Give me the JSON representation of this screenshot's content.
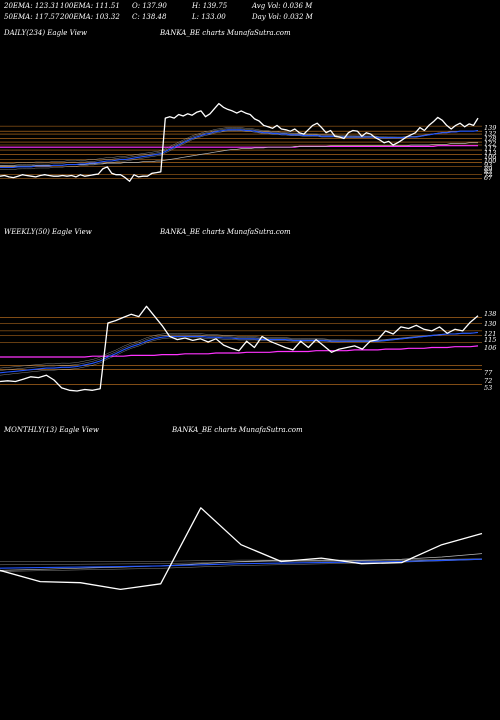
{
  "header": {
    "row1": [
      {
        "label": "20EMA: 123.31"
      },
      {
        "label": "100EMA: 111.51"
      },
      {
        "label": "O: 137.90"
      },
      {
        "label": "H: 139.75"
      },
      {
        "label": "Avg Vol: 0.036  M"
      }
    ],
    "row2": [
      {
        "label": "50EMA: 117.57"
      },
      {
        "label": "200EMA: 103.32"
      },
      {
        "label": "C: 138.48"
      },
      {
        "label": "L: 133.00"
      },
      {
        "label": "Day Vol: 0.032  M"
      }
    ]
  },
  "colors": {
    "background": "#000000",
    "price": "#ffffff",
    "ema_fast": "#2255ff",
    "ema_magenta": "#ff33ff",
    "level_lines": "#cc7a22",
    "ema_gray": "#bbbbbb"
  },
  "panels": [
    {
      "title": "DAILY(234) Eagle  View",
      "site": "BANKA_BE charts MunafaSutra.com"
    },
    {
      "title": "WEEKLY(50) Eagle  View",
      "site": "BANKA_BE charts MunafaSutra.com"
    },
    {
      "title": "MONTHLY(13) Eagle  View",
      "site": "BANKA_BE charts MunafaSutra.com"
    }
  ],
  "chart_data": [
    {
      "type": "line",
      "name": "daily",
      "y_tick_labels": [
        "139",
        "132",
        "128",
        "122",
        "117",
        "113",
        "106",
        "100",
        "93",
        "89",
        "83",
        "72",
        "67"
      ],
      "series": [
        {
          "values": [
            70,
            71,
            69,
            68,
            70,
            72,
            71,
            70,
            69,
            71,
            72,
            71,
            70,
            70,
            71,
            70,
            71,
            69,
            72,
            70,
            71,
            72,
            73,
            80,
            83,
            74,
            72,
            72,
            68,
            63,
            72,
            69,
            70,
            70,
            74,
            75,
            76,
            150,
            152,
            150,
            155,
            153,
            156,
            154,
            158,
            160,
            152,
            156,
            163,
            170,
            165,
            162,
            160,
            157,
            160,
            157,
            155,
            149,
            146,
            140,
            138,
            136,
            140,
            135,
            134,
            132,
            135,
            130,
            128,
            134,
            140,
            143,
            137,
            130,
            133,
            125,
            124,
            122,
            130,
            133,
            132,
            125,
            130,
            128,
            123,
            120,
            116,
            118,
            113,
            116,
            120,
            124,
            127,
            130,
            137,
            133,
            140,
            145,
            151,
            147,
            140,
            135,
            140,
            143,
            138,
            142,
            140,
            150
          ]
        },
        {
          "values": [
            82,
            82,
            82,
            82,
            83,
            83,
            83,
            83,
            84,
            84,
            84,
            84,
            85,
            85,
            85,
            86,
            86,
            86,
            87,
            87,
            88,
            88,
            89,
            90,
            91,
            91,
            92,
            93,
            93,
            94,
            95,
            96,
            97,
            98,
            99,
            100,
            101,
            104,
            107,
            110,
            113,
            116,
            119,
            122,
            124,
            126,
            128,
            129,
            131,
            132,
            133,
            134,
            134,
            134,
            134,
            133,
            133,
            132,
            131,
            130,
            130,
            129,
            129,
            128,
            128,
            127,
            127,
            127,
            126,
            126,
            126,
            126,
            125,
            125,
            125,
            125,
            124,
            124,
            124,
            124,
            124,
            124,
            124,
            124,
            124,
            123,
            123,
            123,
            123,
            123,
            123,
            124,
            124,
            124,
            125,
            126,
            127,
            128,
            129,
            130,
            130,
            131,
            131,
            132,
            132,
            132,
            132,
            133
          ]
        },
        {
          "values": [
            84,
            84,
            84,
            84,
            84,
            84,
            84,
            84,
            85,
            85,
            85,
            85,
            85,
            85,
            85,
            86,
            86,
            86,
            86,
            86,
            87,
            87,
            87,
            87,
            88,
            88,
            88,
            88,
            89,
            89,
            89,
            89,
            90,
            90,
            90,
            91,
            91,
            92,
            93,
            94,
            95,
            96,
            97,
            98,
            99,
            100,
            101,
            102,
            103,
            104,
            105,
            106,
            107,
            107,
            108,
            108,
            108,
            109,
            109,
            109,
            110,
            110,
            110,
            110,
            110,
            110,
            111,
            111,
            111,
            111,
            111,
            111,
            111,
            111,
            112,
            112,
            112,
            112,
            112,
            112,
            112,
            112,
            112,
            112,
            112,
            112,
            112,
            112,
            112,
            112,
            112,
            112,
            113,
            113,
            113,
            113,
            113,
            114,
            114,
            114,
            114,
            115,
            115,
            115,
            115,
            116,
            116,
            116
          ]
        },
        {
          "values": [
            110,
            110,
            110,
            110,
            110,
            110,
            110,
            110,
            110,
            110,
            110,
            110,
            110,
            110,
            110,
            110,
            110,
            110,
            110,
            110,
            110,
            110,
            110,
            110,
            110,
            110,
            110,
            110,
            110,
            110,
            110,
            110,
            110,
            110,
            110,
            110,
            110,
            110,
            110,
            110,
            110,
            110,
            110,
            110,
            110,
            110,
            110,
            110,
            110,
            110,
            110,
            110,
            110,
            110,
            110,
            110,
            110,
            110,
            110,
            110,
            110,
            110,
            110,
            110,
            110,
            110,
            110,
            111,
            111,
            111,
            111,
            111,
            111,
            111,
            111,
            111,
            111,
            111,
            111,
            111,
            111,
            111,
            111,
            111,
            111,
            111,
            111,
            111,
            111,
            111,
            111,
            111,
            111,
            111,
            111,
            111,
            111,
            111,
            112,
            112,
            112,
            112,
            112,
            112,
            112,
            112,
            112,
            112
          ]
        }
      ]
    },
    {
      "type": "line",
      "name": "weekly",
      "y_tick_labels": [
        "138",
        "130",
        "121",
        "115",
        "106",
        "77",
        "72",
        "53"
      ],
      "series": [
        {
          "values": [
            57,
            58,
            57,
            60,
            63,
            62,
            65,
            59,
            49,
            46,
            45,
            47,
            46,
            48,
            131,
            134,
            138,
            142,
            139,
            152,
            140,
            128,
            114,
            110,
            112,
            109,
            111,
            107,
            111,
            103,
            99,
            96,
            108,
            100,
            114,
            108,
            104,
            100,
            97,
            108,
            100,
            110,
            102,
            94,
            98,
            100,
            102,
            98,
            108,
            110,
            121,
            117,
            126,
            124,
            128,
            123,
            121,
            126,
            118,
            123,
            121,
            132,
            140
          ]
        },
        {
          "values": [
            68,
            69,
            70,
            71,
            72,
            73,
            74,
            74,
            75,
            75,
            76,
            78,
            80,
            83,
            88,
            92,
            97,
            101,
            104,
            108,
            111,
            113,
            114,
            114,
            114,
            114,
            114,
            113,
            113,
            112,
            112,
            111,
            111,
            111,
            110,
            110,
            110,
            110,
            109,
            109,
            109,
            109,
            109,
            108,
            108,
            108,
            108,
            108,
            108,
            108,
            109,
            110,
            111,
            112,
            113,
            114,
            115,
            116,
            117,
            117,
            118,
            118,
            119
          ]
        },
        {
          "values": [
            88,
            88,
            88,
            88,
            88,
            88,
            88,
            88,
            88,
            88,
            88,
            88,
            89,
            89,
            89,
            89,
            89,
            90,
            90,
            90,
            90,
            91,
            91,
            91,
            92,
            92,
            92,
            92,
            93,
            93,
            93,
            93,
            94,
            94,
            94,
            94,
            95,
            95,
            95,
            95,
            95,
            96,
            96,
            96,
            96,
            96,
            97,
            97,
            97,
            97,
            98,
            98,
            98,
            99,
            99,
            99,
            100,
            100,
            100,
            101,
            101,
            101,
            102
          ]
        }
      ]
    },
    {
      "type": "line",
      "name": "monthly",
      "y_tick_labels": [],
      "series": [
        {
          "values": [
            62,
            52,
            51,
            45,
            50,
            118,
            85,
            70,
            73,
            68,
            69,
            85,
            95
          ]
        },
        {
          "values": [
            64,
            64.5,
            65,
            65.5,
            66,
            67,
            68,
            68.5,
            69,
            69.5,
            70,
            71,
            72
          ]
        },
        {
          "values": [
            62,
            63,
            64,
            65,
            66,
            68,
            70,
            71,
            71,
            71,
            72,
            74,
            77
          ]
        }
      ]
    }
  ]
}
